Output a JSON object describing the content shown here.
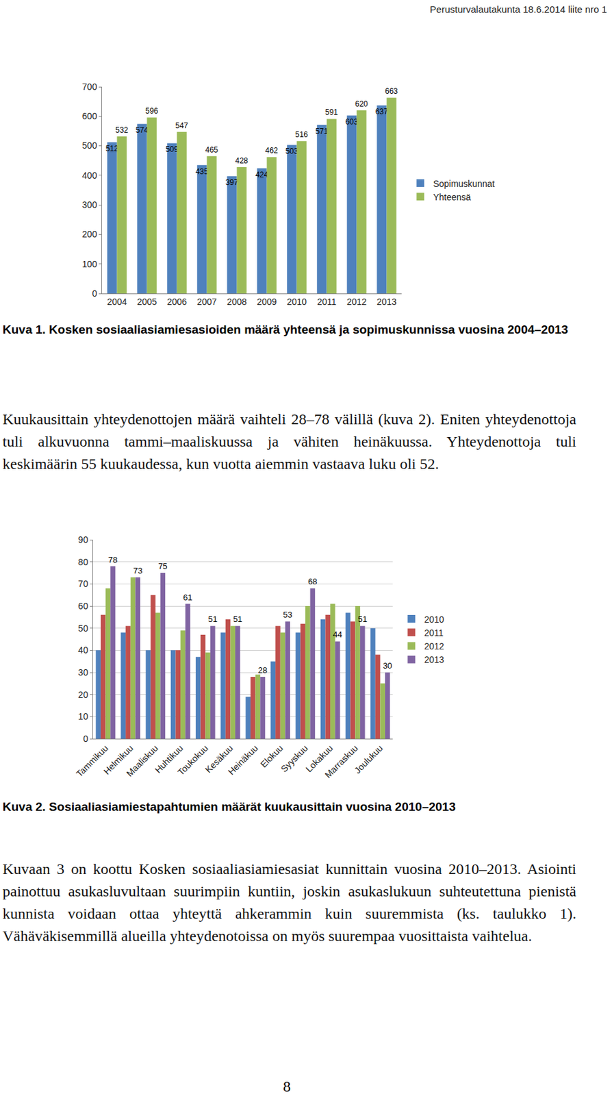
{
  "header": "Perusturvalautakunta 18.6.2014 liite nro 1",
  "chart_data": [
    {
      "type": "bar",
      "categories": [
        "2004",
        "2005",
        "2006",
        "2007",
        "2008",
        "2009",
        "2010",
        "2011",
        "2012",
        "2013"
      ],
      "series": [
        {
          "name": "Sopimuskunnat",
          "color": "#4f81bd",
          "values": [
            512,
            574,
            509,
            435,
            397,
            424,
            503,
            571,
            603,
            637
          ]
        },
        {
          "name": "Yhteensä",
          "color": "#9bbb59",
          "values": [
            532,
            596,
            547,
            465,
            428,
            462,
            516,
            591,
            620,
            663
          ]
        }
      ],
      "ylim": [
        0,
        700
      ],
      "yticks": [
        0,
        100,
        200,
        300,
        400,
        500,
        600,
        700
      ],
      "grid": false,
      "legend": "right",
      "data_labels": true
    },
    {
      "type": "bar",
      "categories": [
        "Tammikuu",
        "Helmikuu",
        "Maaliskuu",
        "Huhtikuu",
        "Toukokuu",
        "Kesäkuu",
        "Heinäkuu",
        "Elokuu",
        "Syyskuu",
        "Lokakuu",
        "Marraskuu",
        "Joulukuu"
      ],
      "series": [
        {
          "name": "2010",
          "color": "#4f81bd",
          "values": [
            40,
            48,
            40,
            40,
            37,
            48,
            19,
            35,
            48,
            54,
            57,
            50
          ]
        },
        {
          "name": "2011",
          "color": "#c0504d",
          "values": [
            56,
            51,
            65,
            40,
            47,
            54,
            28,
            51,
            52,
            56,
            53,
            38
          ]
        },
        {
          "name": "2012",
          "color": "#9bbb59",
          "values": [
            68,
            73,
            57,
            49,
            39,
            51,
            29,
            48,
            60,
            61,
            60,
            25
          ]
        },
        {
          "name": "2013",
          "color": "#8064a2",
          "values": [
            78,
            73,
            75,
            61,
            51,
            51,
            28,
            53,
            68,
            44,
            51,
            30
          ],
          "data_labels": true
        }
      ],
      "ylim": [
        0,
        90
      ],
      "yticks": [
        0,
        10,
        20,
        30,
        40,
        50,
        60,
        70,
        80,
        90
      ],
      "grid": true,
      "legend": "right"
    }
  ],
  "captions": [
    "Kuva 1. Kosken sosiaaliasiamiesasioiden määrä yhteensä ja sopimuskunnissa vuosina 2004–2013",
    "Kuva 2. Sosiaaliasiamiestapahtumien määrät kuukausittain vuosina 2010–2013"
  ],
  "paragraphs": [
    "Kuukausittain yhteydenottojen määrä vaihteli 28–78 välillä (kuva 2). Eniten yhteydenottoja tuli alkuvuonna tammi–maaliskuussa ja vähiten heinäkuussa. Yhteydenottoja tuli keskimäärin 55 kuukaudessa, kun vuotta aiemmin vastaava luku oli 52.",
    "Kuvaan 3 on koottu Kosken sosiaaliasiamiesasiat kunnittain vuosina 2010–2013. Asiointi painottuu asukasluvultaan suurimpiin kuntiin, joskin asukaslukuun suhteutettuna pienistä kunnista voidaan ottaa yhteyttä ahkerammin kuin suuremmista (ks. taulukko 1). Vähäväkisemmillä alueilla yhteydenotoissa on myös suurempaa vuosittaista vaihtelua."
  ],
  "page_number": "8"
}
